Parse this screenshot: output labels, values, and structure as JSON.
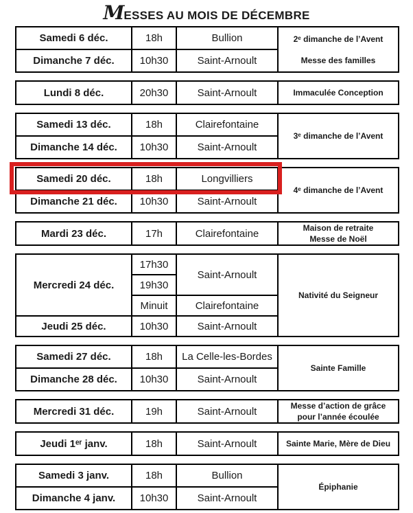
{
  "title": {
    "initial": "M",
    "rest": "ESSES AU MOIS DE DÉCEMBRE"
  },
  "highlight_color": "#d9201f",
  "table": {
    "column_roles": [
      "date",
      "time",
      "place",
      "note"
    ],
    "blocks": [
      {
        "rows": [
          [
            {
              "c": "date",
              "t": "Samedi 6 déc."
            },
            {
              "c": "time",
              "t": "18h"
            },
            {
              "c": "place",
              "t": "Bullion"
            },
            {
              "c": "note",
              "lines": [
                "2ᵉ dimanche de l’Avent",
                "Messe des familles"
              ],
              "rs": 2,
              "spread": true
            }
          ],
          [
            {
              "c": "date",
              "t": "Dimanche 7 déc."
            },
            {
              "c": "time",
              "t": "10h30"
            },
            {
              "c": "place",
              "t": "Saint-Arnoult"
            }
          ]
        ]
      },
      {
        "rows": [
          [
            {
              "c": "date",
              "t": "Lundi 8 déc."
            },
            {
              "c": "time",
              "t": "20h30"
            },
            {
              "c": "place",
              "t": "Saint-Arnoult"
            },
            {
              "c": "note",
              "lines": [
                "Immaculée Conception"
              ]
            }
          ]
        ]
      },
      {
        "rows": [
          [
            {
              "c": "date",
              "t": "Samedi 13 déc."
            },
            {
              "c": "time",
              "t": "18h"
            },
            {
              "c": "place",
              "t": "Clairefontaine"
            },
            {
              "c": "note",
              "lines": [
                "3ᵉ dimanche de l’Avent"
              ],
              "rs": 2
            }
          ],
          [
            {
              "c": "date",
              "t": "Dimanche 14 déc."
            },
            {
              "c": "time",
              "t": "10h30"
            },
            {
              "c": "place",
              "t": "Saint-Arnoult"
            }
          ]
        ]
      },
      {
        "highlighted": true,
        "rows": [
          [
            {
              "c": "date",
              "t": "Samedi 20 déc."
            },
            {
              "c": "time",
              "t": "18h"
            },
            {
              "c": "place",
              "t": "Longvilliers"
            },
            {
              "c": "note",
              "lines": [
                "4ᵉ dimanche de l’Avent"
              ],
              "rs": 2
            }
          ],
          [
            {
              "c": "date",
              "t": "Dimanche 21 déc."
            },
            {
              "c": "time",
              "t": "10h30"
            },
            {
              "c": "place",
              "t": "Saint-Arnoult"
            }
          ]
        ]
      },
      {
        "rows": [
          [
            {
              "c": "date",
              "t": "Mardi 23 déc."
            },
            {
              "c": "time",
              "t": "17h"
            },
            {
              "c": "place",
              "t": "Clairefontaine"
            },
            {
              "c": "note",
              "lines": [
                "Maison de retraite",
                "Messe de Noël"
              ]
            }
          ]
        ]
      },
      {
        "rows": [
          [
            {
              "c": "date",
              "t": "Mercredi 24 déc.",
              "rs": 3
            },
            {
              "c": "time",
              "t": "17h30"
            },
            {
              "c": "place",
              "t": "Saint-Arnoult",
              "rs": 2
            },
            {
              "c": "note",
              "lines": [
                "Nativité du Seigneur"
              ],
              "rs": 4
            }
          ],
          [
            {
              "c": "time",
              "t": "19h30"
            }
          ],
          [
            {
              "c": "time",
              "t": "Minuit"
            },
            {
              "c": "place",
              "t": "Clairefontaine"
            }
          ],
          [
            {
              "c": "date",
              "t": "Jeudi 25 déc."
            },
            {
              "c": "time",
              "t": "10h30"
            },
            {
              "c": "place",
              "t": "Saint-Arnoult"
            }
          ]
        ]
      },
      {
        "rows": [
          [
            {
              "c": "date",
              "t": "Samedi 27 déc."
            },
            {
              "c": "time",
              "t": "18h"
            },
            {
              "c": "place",
              "t": "La Celle-les-Bordes"
            },
            {
              "c": "note",
              "lines": [
                "Sainte Famille"
              ],
              "rs": 2
            }
          ],
          [
            {
              "c": "date",
              "t": "Dimanche 28 déc."
            },
            {
              "c": "time",
              "t": "10h30"
            },
            {
              "c": "place",
              "t": "Saint-Arnoult"
            }
          ]
        ]
      },
      {
        "rows": [
          [
            {
              "c": "date",
              "t": "Mercredi 31 déc."
            },
            {
              "c": "time",
              "t": "19h"
            },
            {
              "c": "place",
              "t": "Saint-Arnoult"
            },
            {
              "c": "note",
              "lines": [
                "Messe d’action de grâce",
                "pour l’année écoulée"
              ]
            }
          ]
        ]
      },
      {
        "rows": [
          [
            {
              "c": "date",
              "t": "Jeudi 1ᵉʳ janv."
            },
            {
              "c": "time",
              "t": "18h"
            },
            {
              "c": "place",
              "t": "Saint-Arnoult"
            },
            {
              "c": "note",
              "lines": [
                "Sainte Marie, Mère de Dieu"
              ]
            }
          ]
        ]
      },
      {
        "rows": [
          [
            {
              "c": "date",
              "t": "Samedi 3 janv."
            },
            {
              "c": "time",
              "t": "18h"
            },
            {
              "c": "place",
              "t": "Bullion"
            },
            {
              "c": "note",
              "lines": [
                "Épiphanie"
              ],
              "rs": 2
            }
          ],
          [
            {
              "c": "date",
              "t": "Dimanche 4 janv."
            },
            {
              "c": "time",
              "t": "10h30"
            },
            {
              "c": "place",
              "t": "Saint-Arnoult"
            }
          ]
        ]
      }
    ]
  }
}
